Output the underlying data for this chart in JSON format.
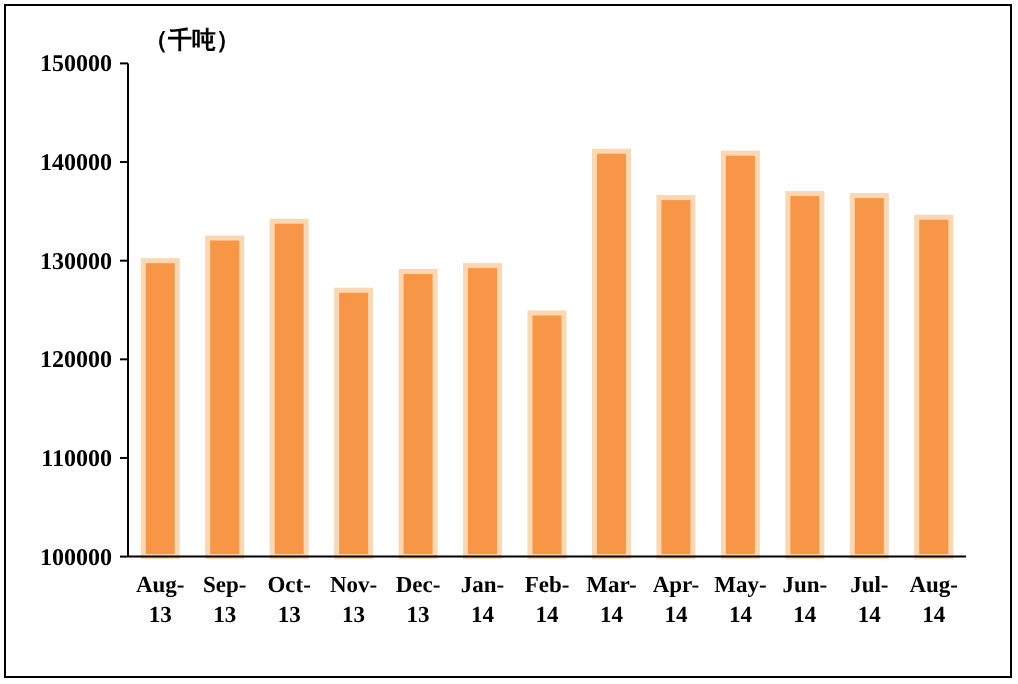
{
  "chart_data": {
    "type": "bar",
    "ylabel": "（千吨）",
    "categories": [
      "Aug-13",
      "Sep-13",
      "Oct-13",
      "Nov-13",
      "Dec-13",
      "Jan-14",
      "Feb-14",
      "Mar-14",
      "Apr-14",
      "May-14",
      "Jun-14",
      "Jul-14",
      "Aug-14"
    ],
    "values": [
      130000,
      132300,
      134000,
      127000,
      128900,
      129500,
      124700,
      141100,
      136400,
      140900,
      136800,
      136600,
      134400
    ],
    "color": "#f79646",
    "ylim": [
      100000,
      150000
    ],
    "yticks": [
      100000,
      110000,
      120000,
      130000,
      140000,
      150000
    ]
  }
}
